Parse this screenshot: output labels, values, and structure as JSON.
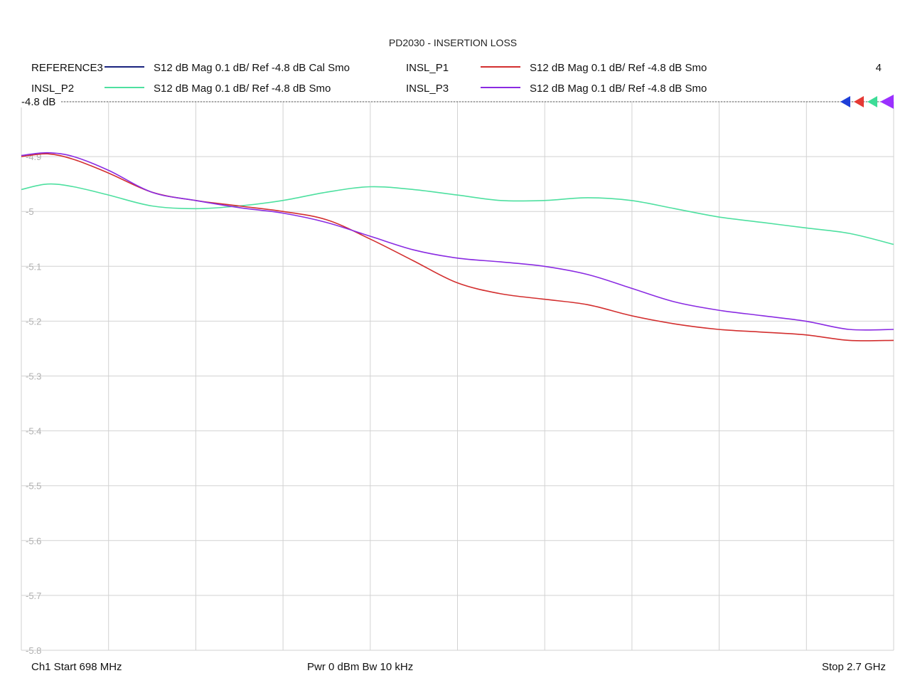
{
  "chart_data": {
    "type": "line",
    "title": "PD2030 - INSERTION LOSS",
    "channel_number": "4",
    "reference_label": "-4.8 dB",
    "x_range": [
      698,
      2700
    ],
    "x_unit": "MHz",
    "ylim": [
      -5.8,
      -4.8
    ],
    "y_ticks": [
      {
        "value": -4.8,
        "label": "-4.8"
      },
      {
        "value": -4.9,
        "label": "-4.9"
      },
      {
        "value": -5.0,
        "label": "-5"
      },
      {
        "value": -5.1,
        "label": "-5.1"
      },
      {
        "value": -5.2,
        "label": "-5.2"
      },
      {
        "value": -5.3,
        "label": "-5.3"
      },
      {
        "value": -5.4,
        "label": "-5.4"
      },
      {
        "value": -5.5,
        "label": "-5.5"
      },
      {
        "value": -5.6,
        "label": "-5.6"
      },
      {
        "value": -5.7,
        "label": "-5.7"
      },
      {
        "value": -5.8,
        "label": "-5.8"
      }
    ],
    "grid": true,
    "x_divisions": 10,
    "legend": [
      {
        "name": "REFERENCE3",
        "desc": "S12  dB Mag  0.1 dB/ Ref -4.8 dB  Cal Smo",
        "color": "#1a237e"
      },
      {
        "name": "INSL_P1",
        "desc": "S12  dB Mag  0.1 dB/ Ref -4.8 dB  Smo",
        "color": "#d32f2f"
      },
      {
        "name": "INSL_P2",
        "desc": "S12  dB Mag  0.1 dB/ Ref -4.8 dB  Smo",
        "color": "#4ee0a0"
      },
      {
        "name": "INSL_P3",
        "desc": "S12  dB Mag  0.1 dB/ Ref -4.8 dB  Smo",
        "color": "#8a2be2"
      }
    ],
    "series": [
      {
        "name": "INSL_P2",
        "color": "#4ee0a0",
        "x": [
          698,
          758,
          818,
          898,
          998,
          1098,
          1198,
          1298,
          1398,
          1498,
          1598,
          1698,
          1798,
          1898,
          1998,
          2098,
          2198,
          2298,
          2398,
          2498,
          2598,
          2700
        ],
        "y": [
          -4.96,
          -4.95,
          -4.955,
          -4.97,
          -4.99,
          -4.995,
          -4.99,
          -4.98,
          -4.965,
          -4.955,
          -4.96,
          -4.97,
          -4.98,
          -4.98,
          -4.975,
          -4.98,
          -4.995,
          -5.01,
          -5.02,
          -5.03,
          -5.04,
          -5.06
        ]
      },
      {
        "name": "INSL_P1",
        "color": "#d32f2f",
        "x": [
          698,
          758,
          818,
          898,
          998,
          1098,
          1198,
          1298,
          1398,
          1498,
          1598,
          1698,
          1798,
          1898,
          1998,
          2098,
          2198,
          2298,
          2398,
          2498,
          2598,
          2700
        ],
        "y": [
          -4.9,
          -4.895,
          -4.905,
          -4.93,
          -4.965,
          -4.98,
          -4.99,
          -5.0,
          -5.015,
          -5.05,
          -5.09,
          -5.13,
          -5.15,
          -5.16,
          -5.17,
          -5.19,
          -5.205,
          -5.215,
          -5.22,
          -5.225,
          -5.235,
          -5.235
        ]
      },
      {
        "name": "INSL_P3",
        "color": "#8a2be2",
        "x": [
          698,
          758,
          818,
          898,
          998,
          1098,
          1198,
          1298,
          1398,
          1498,
          1598,
          1698,
          1798,
          1898,
          1998,
          2098,
          2198,
          2298,
          2398,
          2498,
          2598,
          2700
        ],
        "y": [
          -4.898,
          -4.893,
          -4.9,
          -4.925,
          -4.965,
          -4.98,
          -4.993,
          -5.003,
          -5.02,
          -5.045,
          -5.07,
          -5.085,
          -5.092,
          -5.1,
          -5.115,
          -5.14,
          -5.165,
          -5.18,
          -5.19,
          -5.2,
          -5.215,
          -5.215
        ]
      }
    ]
  },
  "footer": {
    "start": "Ch1  Start  698 MHz",
    "center": "Pwr  0 dBm  Bw  10 kHz",
    "stop": "Stop  2.7 GHz"
  },
  "markers": [
    {
      "name": "marker-blue",
      "color": "#1e3fd8"
    },
    {
      "name": "marker-red",
      "color": "#e53935"
    },
    {
      "name": "marker-green",
      "color": "#3ddc97"
    },
    {
      "name": "marker-purple",
      "color": "#9b30ff"
    }
  ]
}
